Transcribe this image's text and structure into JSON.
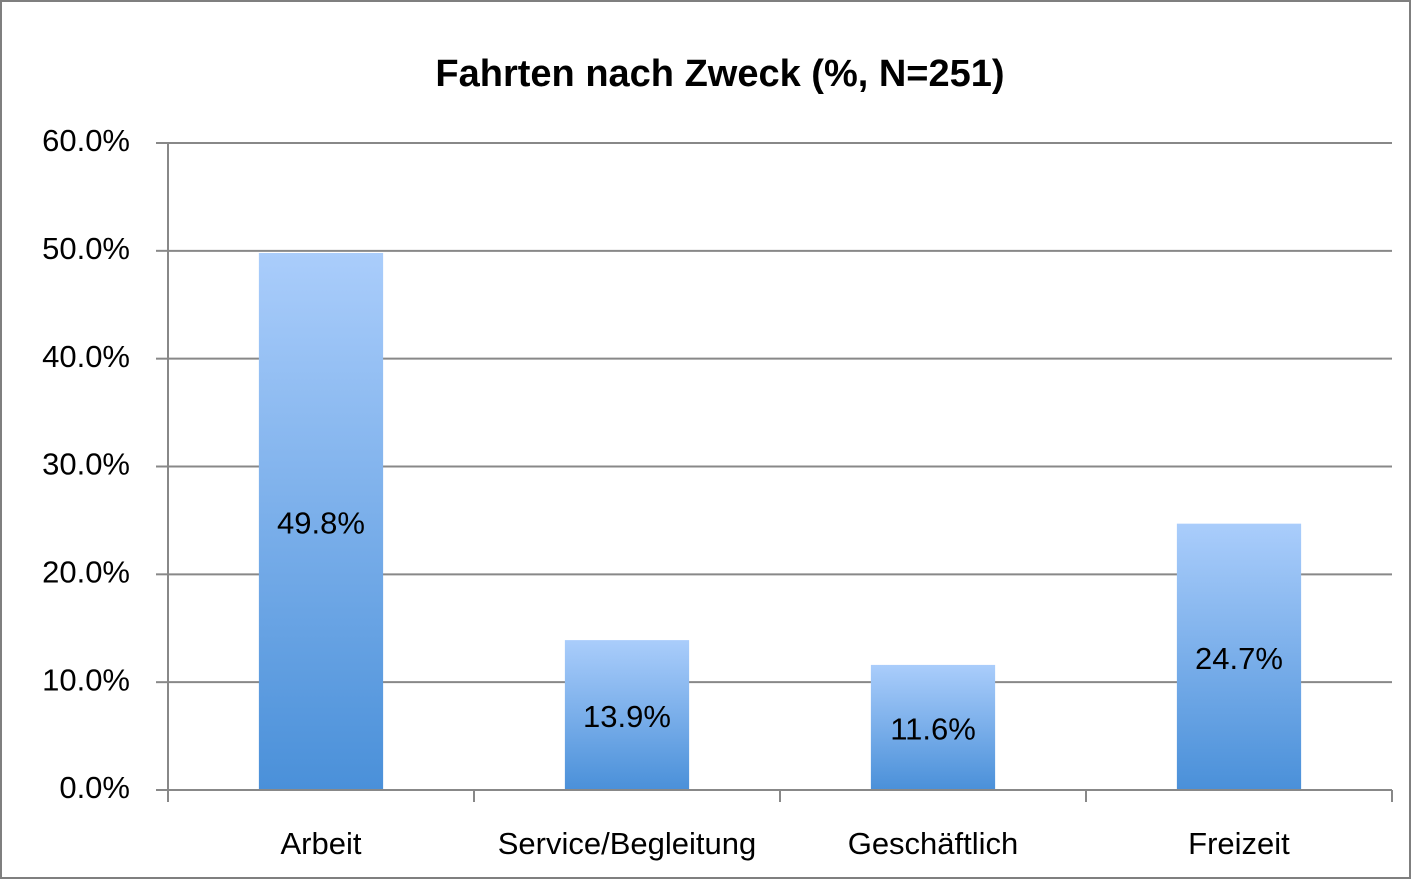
{
  "chart_data": {
    "type": "bar",
    "title": "Fahrten nach Zweck (%, N=251)",
    "categories": [
      "Arbeit",
      "Service/Begleitung",
      "Geschäftlich",
      "Freizeit"
    ],
    "values": [
      49.8,
      13.9,
      11.6,
      24.7
    ],
    "value_labels": [
      "49.8%",
      "13.9%",
      "11.6%",
      "24.7%"
    ],
    "color": "#4a90d9",
    "ylim": [
      0,
      60
    ],
    "yticks": [
      {
        "value": 0,
        "label": "0.0%"
      },
      {
        "value": 10,
        "label": "10.0%"
      },
      {
        "value": 20,
        "label": "20.0%"
      },
      {
        "value": 30,
        "label": "30.0%"
      },
      {
        "value": 40,
        "label": "40.0%"
      },
      {
        "value": 50,
        "label": "50.0%"
      },
      {
        "value": 60,
        "label": "60.0%"
      }
    ],
    "grid": true
  }
}
